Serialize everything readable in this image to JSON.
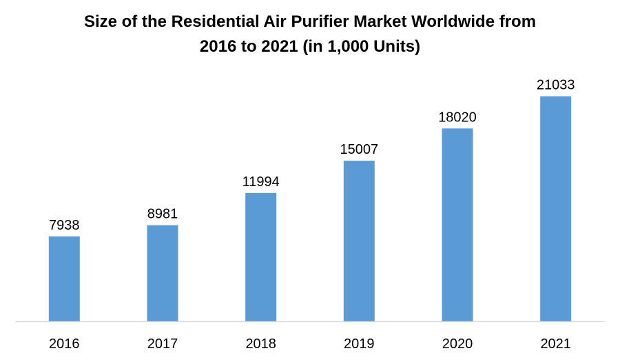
{
  "chart_data": {
    "type": "bar",
    "title_line1": "Size of the Residential Air Purifier Market Worldwide from",
    "title_line2": "2016 to 2021 (in 1,000 Units)",
    "categories": [
      "2016",
      "2017",
      "2018",
      "2019",
      "2020",
      "2021"
    ],
    "values": [
      7938,
      8981,
      11994,
      15007,
      18020,
      21033
    ],
    "ylim": [
      0,
      25000
    ],
    "grid": false,
    "bar_color": "#5b9bd5",
    "axis_color": "#d9d9d9"
  }
}
